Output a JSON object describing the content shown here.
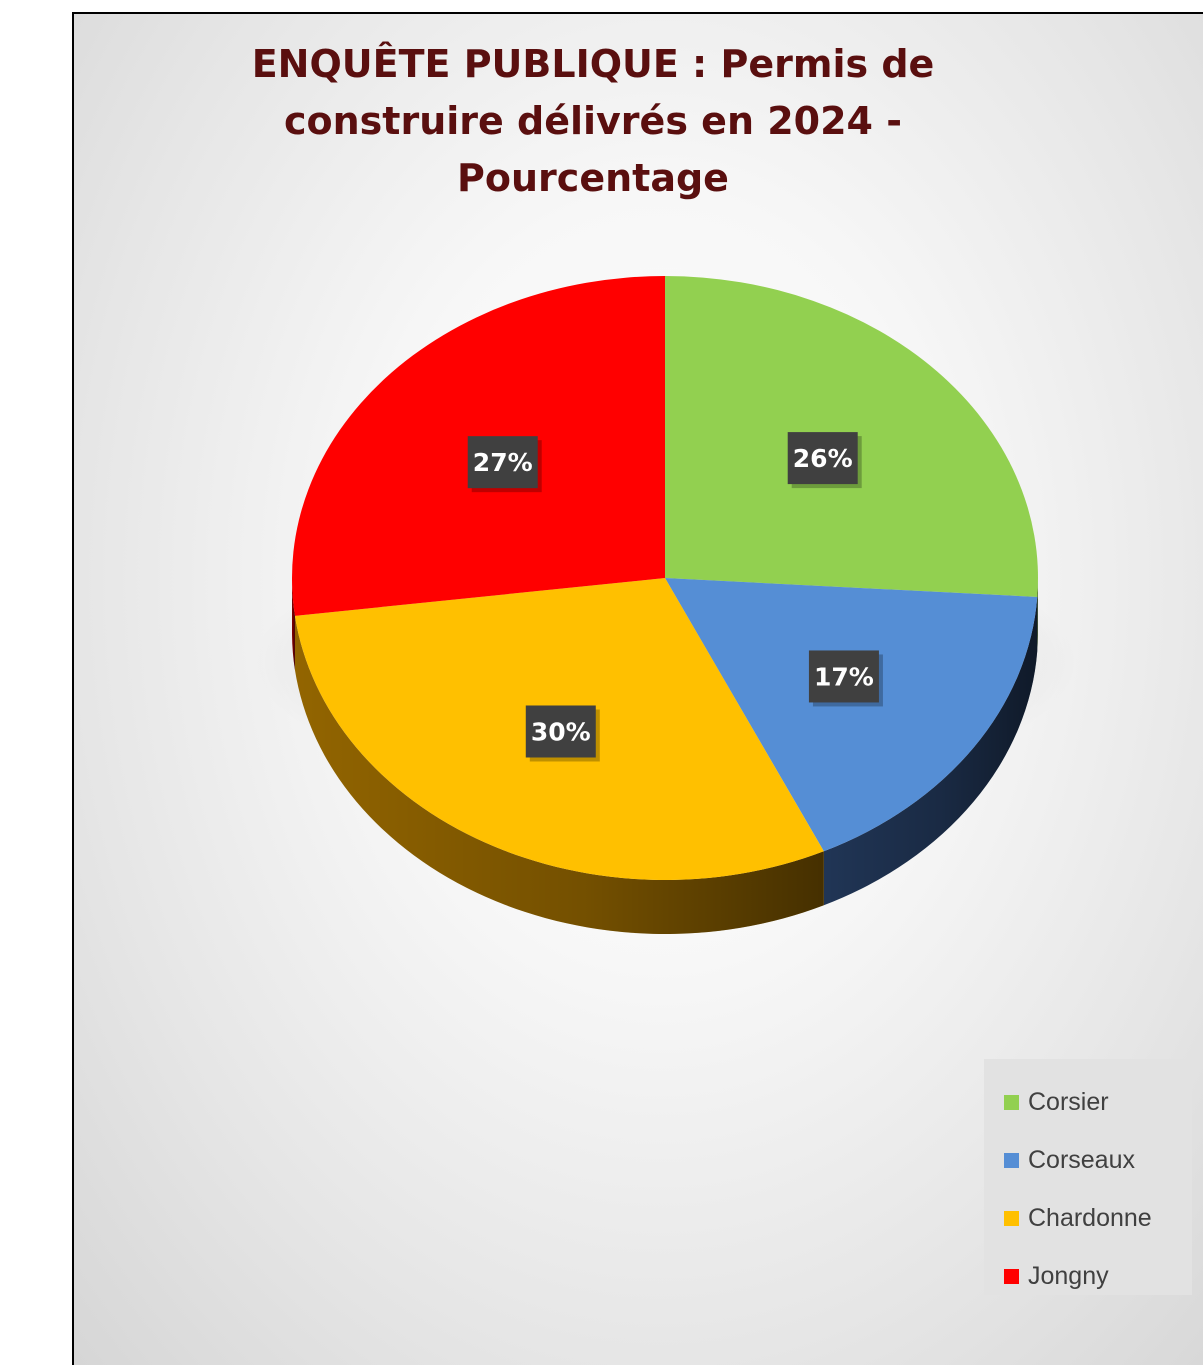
{
  "chart_data": {
    "type": "pie",
    "title": "ENQUÊTE PUBLIQUE : Permis de construire délivrés en 2024 - Pourcentage",
    "categories": [
      "Corsier",
      "Corseaux",
      "Chardonne",
      "Jongny"
    ],
    "values": [
      26,
      17,
      30,
      27
    ],
    "data_labels": [
      "26%",
      "17%",
      "30%",
      "27%"
    ],
    "colors": [
      "#92d050",
      "#558ed5",
      "#ffc000",
      "#ff0000"
    ],
    "side_colors": [
      "#4a6a26",
      "#22385a",
      "#9a6a00",
      "#8a0000"
    ],
    "legend_position": "bottom-right",
    "style": "3d"
  },
  "legend": {
    "items": [
      {
        "label": "Corsier",
        "color": "#92d050"
      },
      {
        "label": "Corseaux",
        "color": "#558ed5"
      },
      {
        "label": "Chardonne",
        "color": "#ffc000"
      },
      {
        "label": "Jongny",
        "color": "#ff0000"
      }
    ]
  }
}
